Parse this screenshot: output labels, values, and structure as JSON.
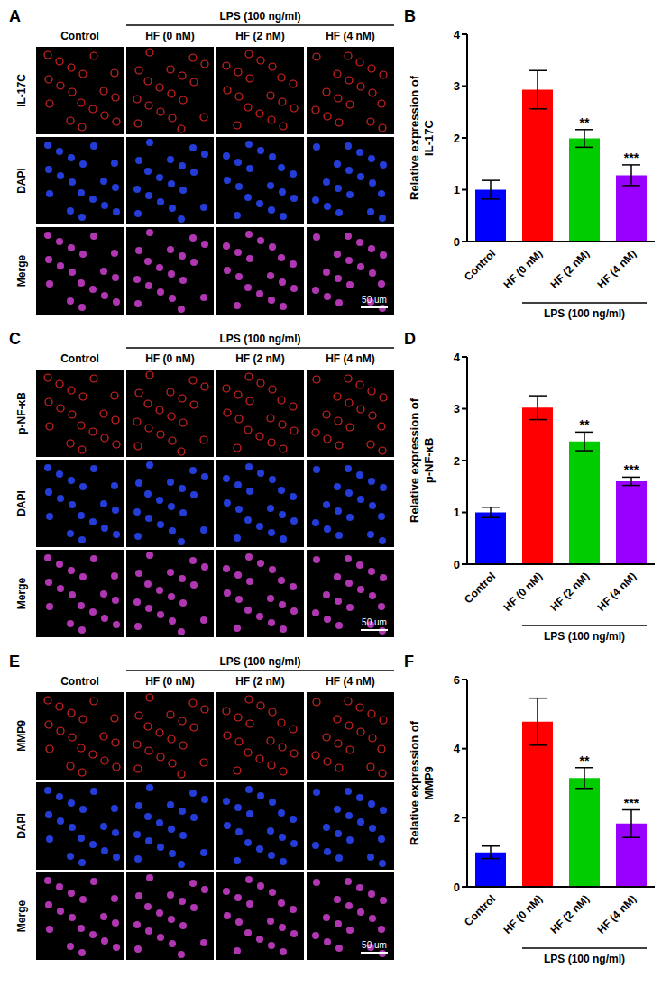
{
  "image_panels": [
    {
      "panel": "A",
      "columns": [
        "Control",
        "HF (0 nM)",
        "HF (2 nM)",
        "HF (4 nM)"
      ],
      "group": {
        "label": "LPS (100 ng/ml)",
        "columns": [
          "HF (0 nM)",
          "HF (2 nM)",
          "HF (4 nM)"
        ]
      },
      "rows": [
        "IL-17C",
        "DAPI",
        "Merge"
      ],
      "scale_bar": "50 um"
    },
    {
      "panel": "C",
      "columns": [
        "Control",
        "HF (0 nM)",
        "HF (2 nM)",
        "HF (4 nM)"
      ],
      "group": {
        "label": "LPS (100 ng/ml)",
        "columns": [
          "HF (0 nM)",
          "HF (2 nM)",
          "HF (4 nM)"
        ]
      },
      "rows": [
        "p-NF-κB",
        "DAPI",
        "Merge"
      ],
      "scale_bar": "50 um"
    },
    {
      "panel": "E",
      "columns": [
        "Control",
        "HF (0 nM)",
        "HF (2 nM)",
        "HF (4 nM)"
      ],
      "group": {
        "label": "LPS (100 ng/ml)",
        "columns": [
          "HF (0 nM)",
          "HF (2 nM)",
          "HF (4 nM)"
        ]
      },
      "rows": [
        "MMP9",
        "DAPI",
        "Merge"
      ],
      "scale_bar": "50 um"
    }
  ],
  "chart_data": [
    {
      "panel": "B",
      "type": "bar",
      "ylabel": "Relative expression of IL-17C",
      "categories": [
        "Control",
        "HF (0 nM)",
        "HF (2 nM)",
        "HF (4 nM)"
      ],
      "values": [
        1.0,
        2.93,
        1.99,
        1.28
      ],
      "error": [
        0.18,
        0.37,
        0.17,
        0.2
      ],
      "colors": [
        "#0000ff",
        "#ff0000",
        "#00cc00",
        "#9900ff"
      ],
      "ylim": [
        0,
        4
      ],
      "yticks": [
        0,
        1,
        2,
        3,
        4
      ],
      "group": {
        "label": "LPS (100 ng/ml)",
        "categories": [
          "HF (0 nM)",
          "HF (2 nM)",
          "HF (4 nM)"
        ]
      },
      "annotations": [
        {
          "category": "HF (2 nM)",
          "text": "**"
        },
        {
          "category": "HF (4 nM)",
          "text": "***"
        }
      ]
    },
    {
      "panel": "D",
      "type": "bar",
      "ylabel": "Relative expression of p-NF-κB",
      "categories": [
        "Control",
        "HF (0 nM)",
        "HF (2 nM)",
        "HF (4 nM)"
      ],
      "values": [
        1.0,
        3.02,
        2.37,
        1.6
      ],
      "error": [
        0.1,
        0.23,
        0.18,
        0.08
      ],
      "colors": [
        "#0000ff",
        "#ff0000",
        "#00cc00",
        "#9900ff"
      ],
      "ylim": [
        0,
        4
      ],
      "yticks": [
        0,
        1,
        2,
        3,
        4
      ],
      "group": {
        "label": "LPS (100 ng/ml)",
        "categories": [
          "HF (0 nM)",
          "HF (2 nM)",
          "HF (4 nM)"
        ]
      },
      "annotations": [
        {
          "category": "HF (2 nM)",
          "text": "**"
        },
        {
          "category": "HF (4 nM)",
          "text": "***"
        }
      ]
    },
    {
      "panel": "F",
      "type": "bar",
      "ylabel": "Relative expression of MMP9",
      "categories": [
        "Control",
        "HF (0 nM)",
        "HF (2 nM)",
        "HF (4 nM)"
      ],
      "values": [
        1.0,
        4.78,
        3.15,
        1.83
      ],
      "error": [
        0.18,
        0.68,
        0.3,
        0.4
      ],
      "colors": [
        "#0000ff",
        "#ff0000",
        "#00cc00",
        "#9900ff"
      ],
      "ylim": [
        0,
        6
      ],
      "yticks": [
        0,
        2,
        4,
        6
      ],
      "group": {
        "label": "LPS (100 ng/ml)",
        "categories": [
          "HF (0 nM)",
          "HF (2 nM)",
          "HF (4 nM)"
        ]
      },
      "annotations": [
        {
          "category": "HF (2 nM)",
          "text": "**"
        },
        {
          "category": "HF (4 nM)",
          "text": "***"
        }
      ]
    }
  ]
}
